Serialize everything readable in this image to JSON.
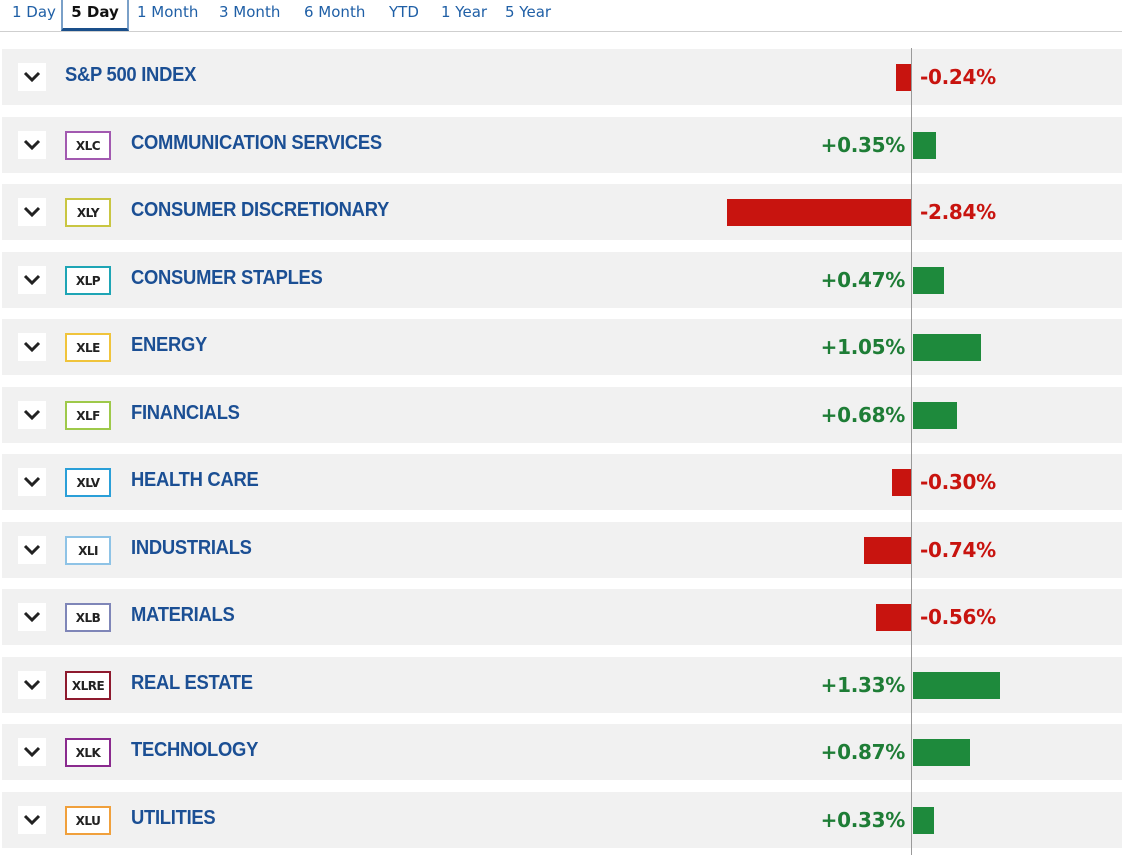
{
  "tabs": [
    {
      "label": "1 Day",
      "active": false
    },
    {
      "label": "5 Day",
      "active": true
    },
    {
      "label": "1 Month",
      "active": false
    },
    {
      "label": "3 Month",
      "active": false
    },
    {
      "label": "6 Month",
      "active": false
    },
    {
      "label": "YTD",
      "active": false
    },
    {
      "label": "1 Year",
      "active": false
    },
    {
      "label": "5 Year",
      "active": false
    }
  ],
  "colors": {
    "positive": "#1e8a3c",
    "negative": "#c8140f",
    "positive_text": "#1e7d36",
    "negative_text": "#c8140f"
  },
  "chart_data": {
    "type": "bar",
    "categories": [
      "S&P 500 INDEX",
      "COMMUNICATION SERVICES",
      "CONSUMER DISCRETIONARY",
      "CONSUMER STAPLES",
      "ENERGY",
      "FINANCIALS",
      "HEALTH CARE",
      "INDUSTRIALS",
      "MATERIALS",
      "REAL ESTATE",
      "TECHNOLOGY",
      "UTILITIES"
    ],
    "values": [
      -0.24,
      0.35,
      -2.84,
      0.47,
      1.05,
      0.68,
      -0.3,
      -0.74,
      -0.56,
      1.33,
      0.87,
      0.33
    ]
  },
  "rows": [
    {
      "name": "S&P 500 INDEX",
      "ticker": "",
      "ticker_color": "",
      "value": -0.24,
      "label": "-0.24%"
    },
    {
      "name": "COMMUNICATION SERVICES",
      "ticker": "XLC",
      "ticker_color": "#a259b0",
      "value": 0.35,
      "label": "+0.35%"
    },
    {
      "name": "CONSUMER DISCRETIONARY",
      "ticker": "XLY",
      "ticker_color": "#c9c642",
      "value": -2.84,
      "label": "-2.84%"
    },
    {
      "name": "CONSUMER STAPLES",
      "ticker": "XLP",
      "ticker_color": "#1ea5b5",
      "value": 0.47,
      "label": "+0.47%"
    },
    {
      "name": "ENERGY",
      "ticker": "XLE",
      "ticker_color": "#f0c43c",
      "value": 1.05,
      "label": "+1.05%"
    },
    {
      "name": "FINANCIALS",
      "ticker": "XLF",
      "ticker_color": "#9ec94a",
      "value": 0.68,
      "label": "+0.68%"
    },
    {
      "name": "HEALTH CARE",
      "ticker": "XLV",
      "ticker_color": "#2a9fd8",
      "value": -0.3,
      "label": "-0.30%"
    },
    {
      "name": "INDUSTRIALS",
      "ticker": "XLI",
      "ticker_color": "#8ec3e6",
      "value": -0.74,
      "label": "-0.74%"
    },
    {
      "name": "MATERIALS",
      "ticker": "XLB",
      "ticker_color": "#7f86b8",
      "value": -0.56,
      "label": "-0.56%"
    },
    {
      "name": "REAL ESTATE",
      "ticker": "XLRE",
      "ticker_color": "#8e1a2e",
      "value": 1.33,
      "label": "+1.33%"
    },
    {
      "name": "TECHNOLOGY",
      "ticker": "XLK",
      "ticker_color": "#8a2a8e",
      "value": 0.87,
      "label": "+0.87%"
    },
    {
      "name": "UTILITIES",
      "ticker": "XLU",
      "ticker_color": "#f0a03c",
      "value": 0.33,
      "label": "+0.33%"
    }
  ]
}
